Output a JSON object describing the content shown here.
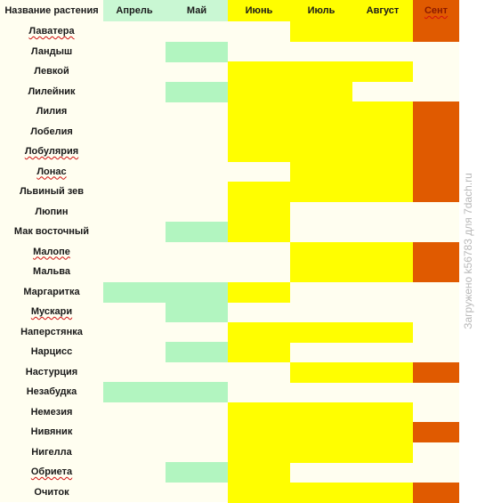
{
  "table": {
    "name_header": "Название растения",
    "months": [
      "Апрель",
      "Май",
      "Июнь",
      "Июль",
      "Август",
      "Сент"
    ],
    "colors": {
      "bg": "#fffef0",
      "may": "#b2f5c0",
      "apr": "#b2f5c0",
      "summer": "#fffe00",
      "september": "#e05a00"
    },
    "rows": [
      {
        "name": "Лаватера",
        "spell": true,
        "months": [
          false,
          false,
          false,
          true,
          true,
          true
        ]
      },
      {
        "name": "Ландыш",
        "spell": false,
        "months": [
          false,
          true,
          false,
          false,
          false,
          false
        ]
      },
      {
        "name": "Левкой",
        "spell": false,
        "months": [
          false,
          false,
          true,
          true,
          true,
          false
        ]
      },
      {
        "name": "Лилейник",
        "spell": false,
        "months": [
          false,
          true,
          true,
          true,
          false,
          false
        ]
      },
      {
        "name": "Лилия",
        "spell": false,
        "months": [
          false,
          false,
          true,
          true,
          true,
          true
        ]
      },
      {
        "name": "Лобелия",
        "spell": false,
        "months": [
          false,
          false,
          true,
          true,
          true,
          true
        ]
      },
      {
        "name": "Лобулярия",
        "spell": true,
        "months": [
          false,
          false,
          true,
          true,
          true,
          true
        ]
      },
      {
        "name": "Лонас",
        "spell": true,
        "months": [
          false,
          false,
          false,
          true,
          true,
          true
        ]
      },
      {
        "name": "Львиный зев",
        "spell": false,
        "months": [
          false,
          false,
          true,
          true,
          true,
          true
        ]
      },
      {
        "name": "Люпин",
        "spell": false,
        "months": [
          false,
          false,
          true,
          false,
          false,
          false
        ]
      },
      {
        "name": "Мак восточный",
        "spell": false,
        "months": [
          false,
          true,
          true,
          false,
          false,
          false
        ]
      },
      {
        "name": "Малопе",
        "spell": true,
        "months": [
          false,
          false,
          false,
          true,
          true,
          true
        ]
      },
      {
        "name": "Мальва",
        "spell": false,
        "months": [
          false,
          false,
          false,
          true,
          true,
          true
        ]
      },
      {
        "name": "Маргаритка",
        "spell": false,
        "months": [
          true,
          true,
          true,
          false,
          false,
          false
        ]
      },
      {
        "name": "Мускари",
        "spell": true,
        "months": [
          false,
          true,
          false,
          false,
          false,
          false
        ]
      },
      {
        "name": "Наперстянка",
        "spell": false,
        "months": [
          false,
          false,
          true,
          true,
          true,
          false
        ]
      },
      {
        "name": "Нарцисс",
        "spell": false,
        "months": [
          false,
          true,
          true,
          false,
          false,
          false
        ]
      },
      {
        "name": "Настурция",
        "spell": false,
        "months": [
          false,
          false,
          false,
          true,
          true,
          true
        ]
      },
      {
        "name": "Незабудка",
        "spell": false,
        "months": [
          true,
          true,
          false,
          false,
          false,
          false
        ]
      },
      {
        "name": "Немезия",
        "spell": false,
        "months": [
          false,
          false,
          true,
          true,
          true,
          false
        ]
      },
      {
        "name": "Нивяник",
        "spell": false,
        "months": [
          false,
          false,
          true,
          true,
          true,
          true
        ]
      },
      {
        "name": "Нигелла",
        "spell": false,
        "months": [
          false,
          false,
          true,
          true,
          true,
          false
        ]
      },
      {
        "name": "Обриета",
        "spell": true,
        "months": [
          false,
          true,
          true,
          false,
          false,
          false
        ]
      },
      {
        "name": "Очиток",
        "spell": false,
        "months": [
          false,
          false,
          true,
          true,
          true,
          true
        ]
      }
    ]
  },
  "watermark": "Загружено k56783 для 7dach.ru"
}
